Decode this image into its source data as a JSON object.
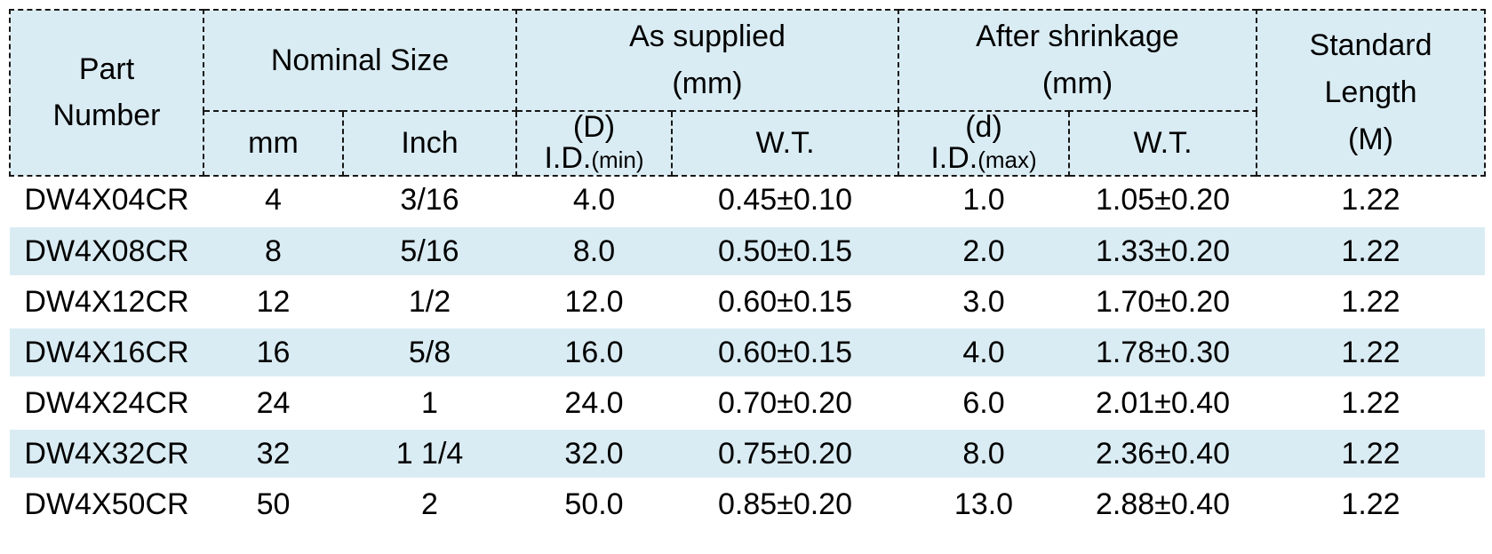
{
  "colors": {
    "header_bg": "#daecf3",
    "stripe_bg": "#daecf3",
    "border": "#161616",
    "text": "#000000"
  },
  "table": {
    "header": {
      "part_number": "Part\nNumber",
      "nominal_size": "Nominal Size",
      "as_supplied": "As supplied\n(mm)",
      "after_shrinkage": "After shrinkage\n(mm)",
      "standard_length": "Standard\nLength\n(M)",
      "mm": "mm",
      "inch": "Inch",
      "id_min": {
        "line1": "(D)",
        "abbr": "I.D.",
        "qualifier": "(min)"
      },
      "id_max": {
        "line1": "(d)",
        "abbr": "I.D.",
        "qualifier": "(max)"
      },
      "wt_supplied": "W.T.",
      "wt_shrinkage": "W.T."
    },
    "columns": [
      "Part Number",
      "Nominal Size mm",
      "Nominal Size Inch",
      "As supplied (D) I.D.(min)",
      "As supplied W.T.",
      "After shrinkage (d) I.D.(max)",
      "After shrinkage W.T.",
      "Standard Length (M)"
    ],
    "rows": [
      [
        "DW4X04CR",
        "4",
        "3/16",
        "4.0",
        "0.45±0.10",
        "1.0",
        "1.05±0.20",
        "1.22"
      ],
      [
        "DW4X08CR",
        "8",
        "5/16",
        "8.0",
        "0.50±0.15",
        "2.0",
        "1.33±0.20",
        "1.22"
      ],
      [
        "DW4X12CR",
        "12",
        "1/2",
        "12.0",
        "0.60±0.15",
        "3.0",
        "1.70±0.20",
        "1.22"
      ],
      [
        "DW4X16CR",
        "16",
        "5/8",
        "16.0",
        "0.60±0.15",
        "4.0",
        "1.78±0.30",
        "1.22"
      ],
      [
        "DW4X24CR",
        "24",
        "1",
        "24.0",
        "0.70±0.20",
        "6.0",
        "2.01±0.40",
        "1.22"
      ],
      [
        "DW4X32CR",
        "32",
        "1 1/4",
        "32.0",
        "0.75±0.20",
        "8.0",
        "2.36±0.40",
        "1.22"
      ],
      [
        "DW4X50CR",
        "50",
        "2",
        "50.0",
        "0.85±0.20",
        "13.0",
        "2.88±0.40",
        "1.22"
      ]
    ]
  }
}
